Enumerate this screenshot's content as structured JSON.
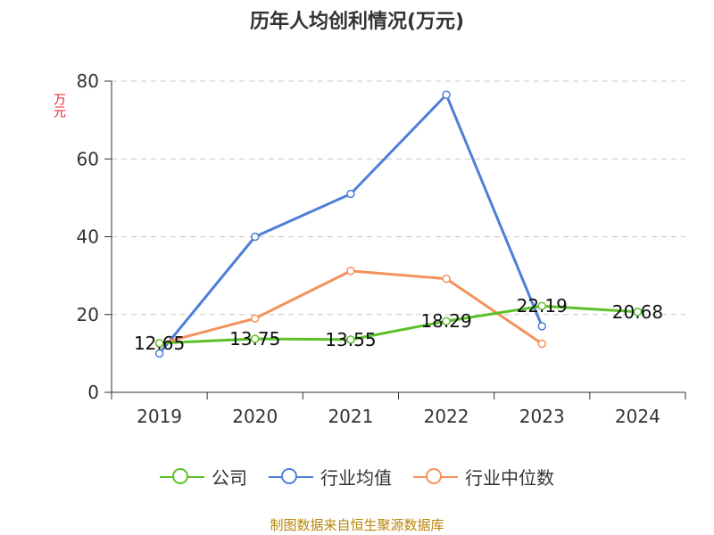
{
  "chart_data": {
    "type": "line",
    "title": "历年人均创利情况(万元)",
    "ylabel": "万元",
    "categories": [
      "2019",
      "2020",
      "2021",
      "2022",
      "2023",
      "2024"
    ],
    "ylim": [
      0,
      80
    ],
    "yticks": [
      0,
      20,
      40,
      60,
      80
    ],
    "grid": true,
    "legend_position": "bottom",
    "series": [
      {
        "name": "公司",
        "color": "#5cc12a",
        "values": [
          12.65,
          13.75,
          13.55,
          18.29,
          22.19,
          20.68
        ],
        "labels": [
          "12.65",
          "13.75",
          "13.55",
          "18.29",
          "22.19",
          "20.68"
        ]
      },
      {
        "name": "行业均值",
        "color": "#4e7fd8",
        "values": [
          10.0,
          40.0,
          51.0,
          76.5,
          17.0,
          null
        ]
      },
      {
        "name": "行业中位数",
        "color": "#f4925e",
        "values": [
          12.5,
          19.0,
          31.2,
          29.2,
          12.5,
          null
        ]
      }
    ],
    "source": "制图数据来自恒生聚源数据库"
  }
}
